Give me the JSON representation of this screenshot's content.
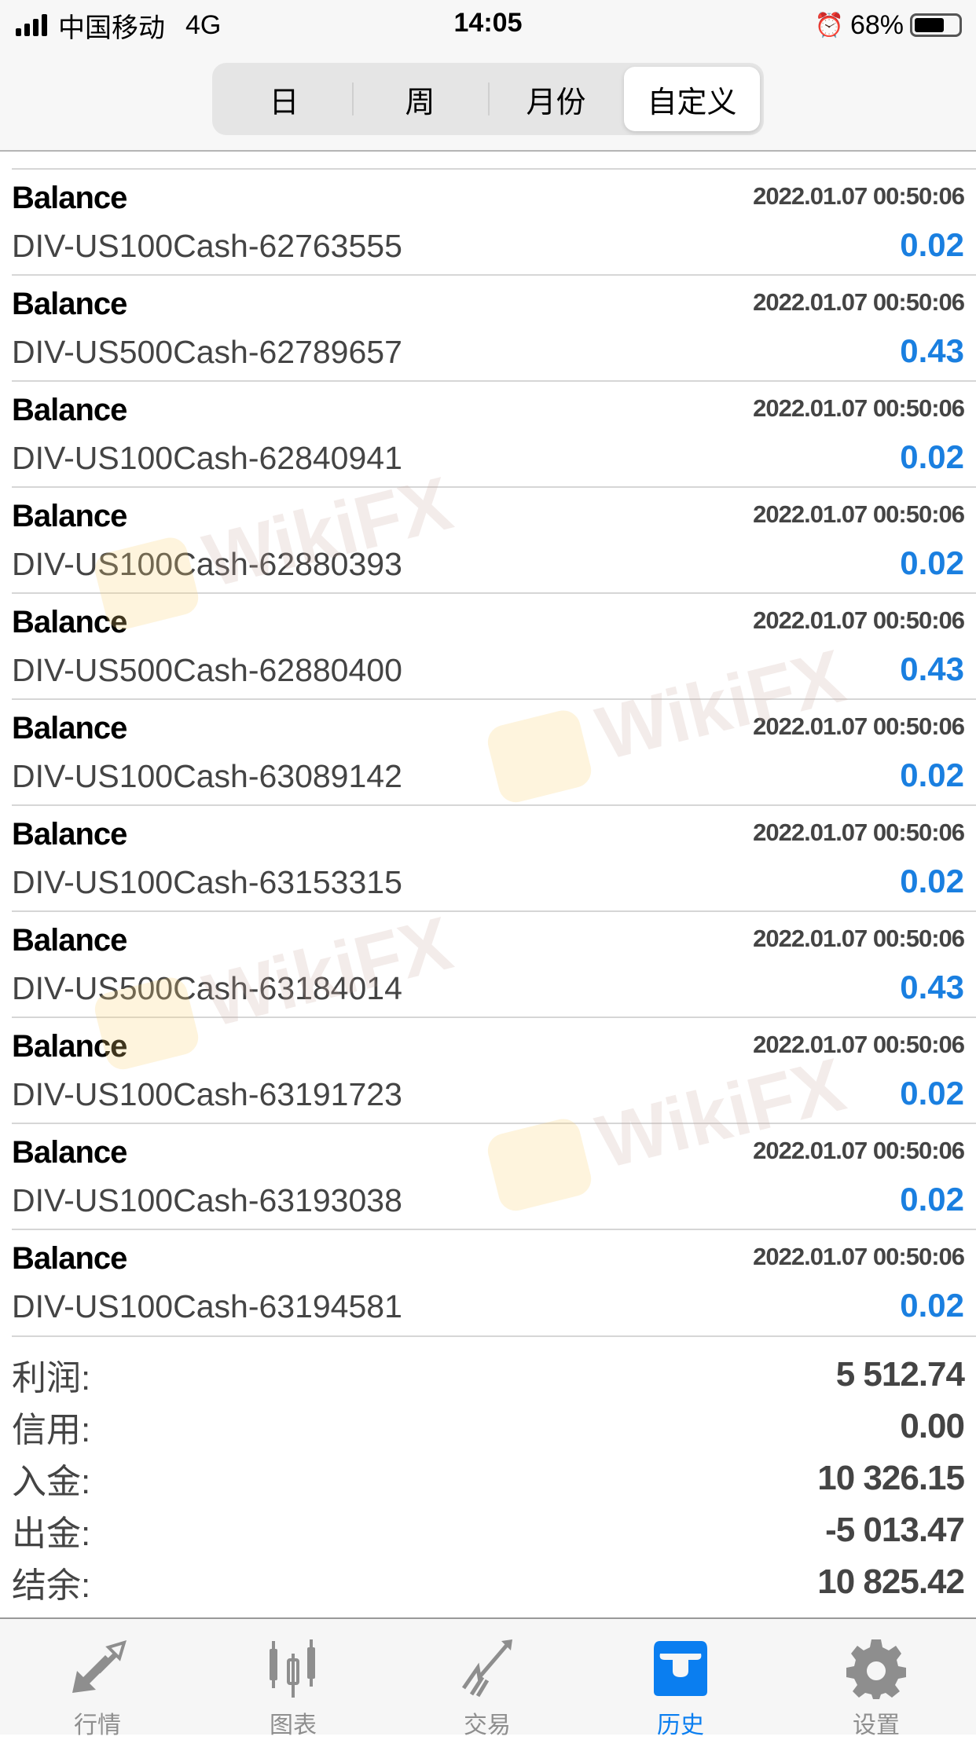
{
  "status_bar": {
    "carrier": "中国移动",
    "network": "4G",
    "time": "14:05",
    "battery": "68%",
    "battery_level": 0.68
  },
  "segments": [
    {
      "label": "日"
    },
    {
      "label": "周"
    },
    {
      "label": "月份"
    },
    {
      "label": "自定义",
      "active": true
    }
  ],
  "rows": [
    {
      "type": "Balance",
      "time": "2022.01.07 00:50:06",
      "symbol": "DIV-US100Cash-62763555",
      "value": "0.02"
    },
    {
      "type": "Balance",
      "time": "2022.01.07 00:50:06",
      "symbol": "DIV-US500Cash-62789657",
      "value": "0.43"
    },
    {
      "type": "Balance",
      "time": "2022.01.07 00:50:06",
      "symbol": "DIV-US100Cash-62840941",
      "value": "0.02"
    },
    {
      "type": "Balance",
      "time": "2022.01.07 00:50:06",
      "symbol": "DIV-US100Cash-62880393",
      "value": "0.02"
    },
    {
      "type": "Balance",
      "time": "2022.01.07 00:50:06",
      "symbol": "DIV-US500Cash-62880400",
      "value": "0.43"
    },
    {
      "type": "Balance",
      "time": "2022.01.07 00:50:06",
      "symbol": "DIV-US100Cash-63089142",
      "value": "0.02"
    },
    {
      "type": "Balance",
      "time": "2022.01.07 00:50:06",
      "symbol": "DIV-US100Cash-63153315",
      "value": "0.02"
    },
    {
      "type": "Balance",
      "time": "2022.01.07 00:50:06",
      "symbol": "DIV-US500Cash-63184014",
      "value": "0.43"
    },
    {
      "type": "Balance",
      "time": "2022.01.07 00:50:06",
      "symbol": "DIV-US100Cash-63191723",
      "value": "0.02"
    },
    {
      "type": "Balance",
      "time": "2022.01.07 00:50:06",
      "symbol": "DIV-US100Cash-63193038",
      "value": "0.02"
    },
    {
      "type": "Balance",
      "time": "2022.01.07 00:50:06",
      "symbol": "DIV-US100Cash-63194581",
      "value": "0.02"
    }
  ],
  "summary": [
    {
      "label": "利润:",
      "value": "5 512.74"
    },
    {
      "label": "信用:",
      "value": "0.00"
    },
    {
      "label": "入金:",
      "value": "10 326.15"
    },
    {
      "label": "出金:",
      "value": "-5 013.47"
    },
    {
      "label": "结余:",
      "value": "10 825.42"
    }
  ],
  "tabs": [
    {
      "label": "行情",
      "icon": "quotes-arrows-icon"
    },
    {
      "label": "图表",
      "icon": "candlestick-chart-icon"
    },
    {
      "label": "交易",
      "icon": "trade-trend-icon"
    },
    {
      "label": "历史",
      "icon": "history-inbox-icon",
      "active": true
    },
    {
      "label": "设置",
      "icon": "gear-icon"
    }
  ],
  "colors": {
    "accent": "#0a7ef0",
    "value_blue": "#1a7fe0"
  },
  "watermark": "WikiFX"
}
